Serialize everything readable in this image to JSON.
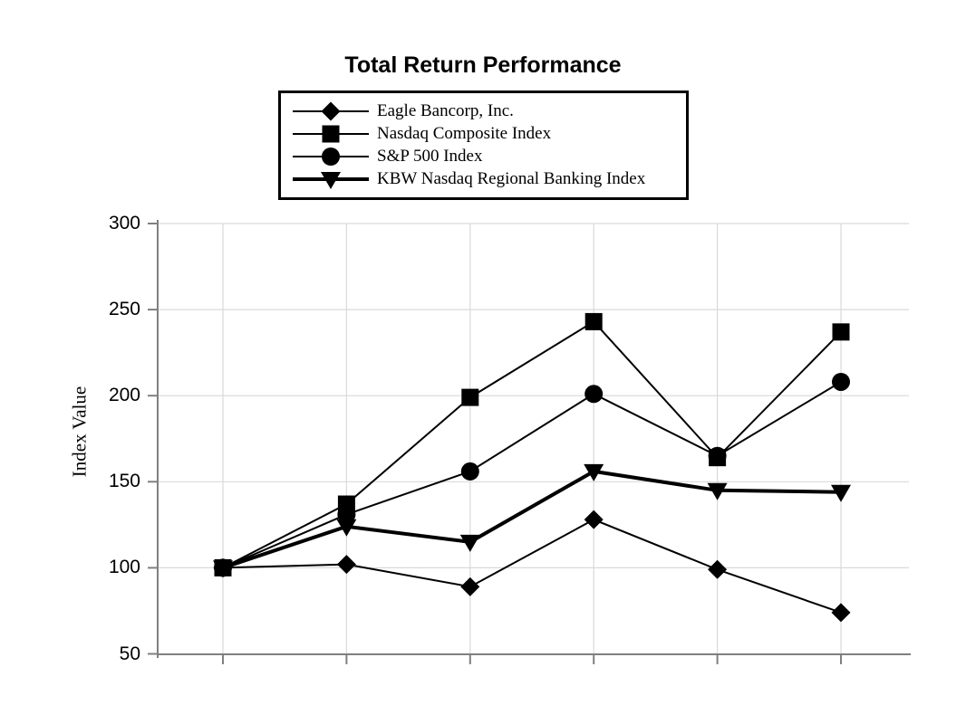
{
  "title": "Total Return Performance",
  "y_axis": {
    "label": "Index Value",
    "ticks": [
      300,
      250,
      200,
      150,
      100,
      50
    ]
  },
  "legend": {
    "items": [
      {
        "label": "Eagle Bancorp, Inc.",
        "marker": "diamond",
        "thick": false
      },
      {
        "label": "Nasdaq Composite Index",
        "marker": "square",
        "thick": false
      },
      {
        "label": "S&P 500 Index",
        "marker": "circle",
        "thick": false
      },
      {
        "label": "KBW Nasdaq Regional Banking Index",
        "marker": "triangle-down",
        "thick": true
      }
    ]
  },
  "chart_data": {
    "type": "line",
    "title": "Total Return Performance",
    "xlabel": "",
    "ylabel": "Index Value",
    "ylim": [
      50,
      300
    ],
    "y_ticks": [
      50,
      100,
      150,
      200,
      250,
      300
    ],
    "x_points": 6,
    "x_tick_labels": [
      "",
      "",
      "",
      "",
      "",
      ""
    ],
    "grid": true,
    "legend_position": "top",
    "series": [
      {
        "name": "Eagle Bancorp, Inc.",
        "marker": "diamond",
        "line_width": 2,
        "values": [
          100,
          102,
          89,
          128,
          99,
          74
        ]
      },
      {
        "name": "Nasdaq Composite Index",
        "marker": "square",
        "line_width": 2,
        "values": [
          100,
          137,
          199,
          243,
          164,
          237
        ]
      },
      {
        "name": "S&P 500 Index",
        "marker": "circle",
        "line_width": 2,
        "values": [
          100,
          131,
          156,
          201,
          165,
          208
        ]
      },
      {
        "name": "KBW Nasdaq Regional Banking Index",
        "marker": "triangle-down",
        "line_width": 4,
        "values": [
          100,
          124,
          115,
          156,
          145,
          144
        ]
      }
    ],
    "colors": {
      "series": "#000000",
      "gridline": "#d9d9d9",
      "axis": "#808080",
      "text": "#000000",
      "background": "#ffffff"
    }
  }
}
